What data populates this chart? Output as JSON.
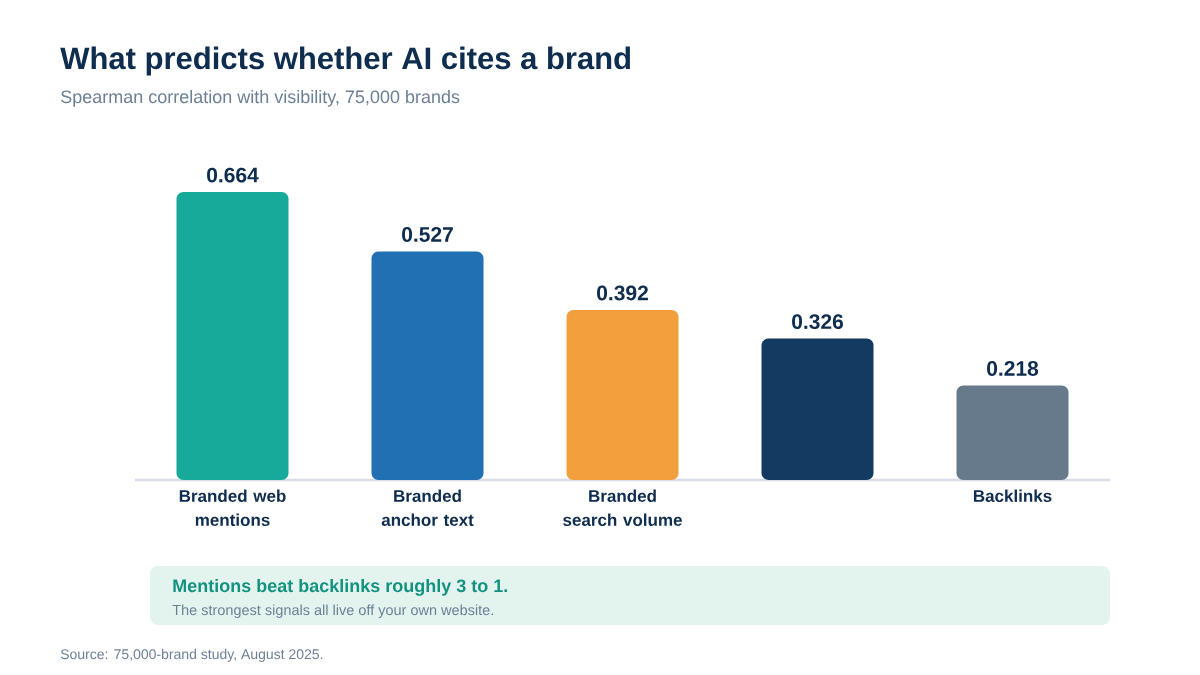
{
  "chart_data": {
    "type": "bar",
    "title": "What predicts whether AI cites a brand",
    "subtitle": "Spearman correlation with visibility, 75,000 brands",
    "categories": [
      "Branded web mentions",
      "Branded anchor text",
      "Branded search volume",
      null,
      "Backlinks"
    ],
    "values": [
      0.664,
      0.527,
      0.392,
      0.326,
      0.218
    ],
    "colors": [
      "#17a99a",
      "#2170b3",
      "#f2a03d",
      "#133a61",
      "#667a8c"
    ],
    "tick_labels": "x",
    "data_labels": true,
    "annotations": [
      "Mentions beat backlinks roughly 3 to 1.",
      "The strongest signals all live off your own website.",
      "Source: 75,000-brand study, August 2025."
    ]
  }
}
